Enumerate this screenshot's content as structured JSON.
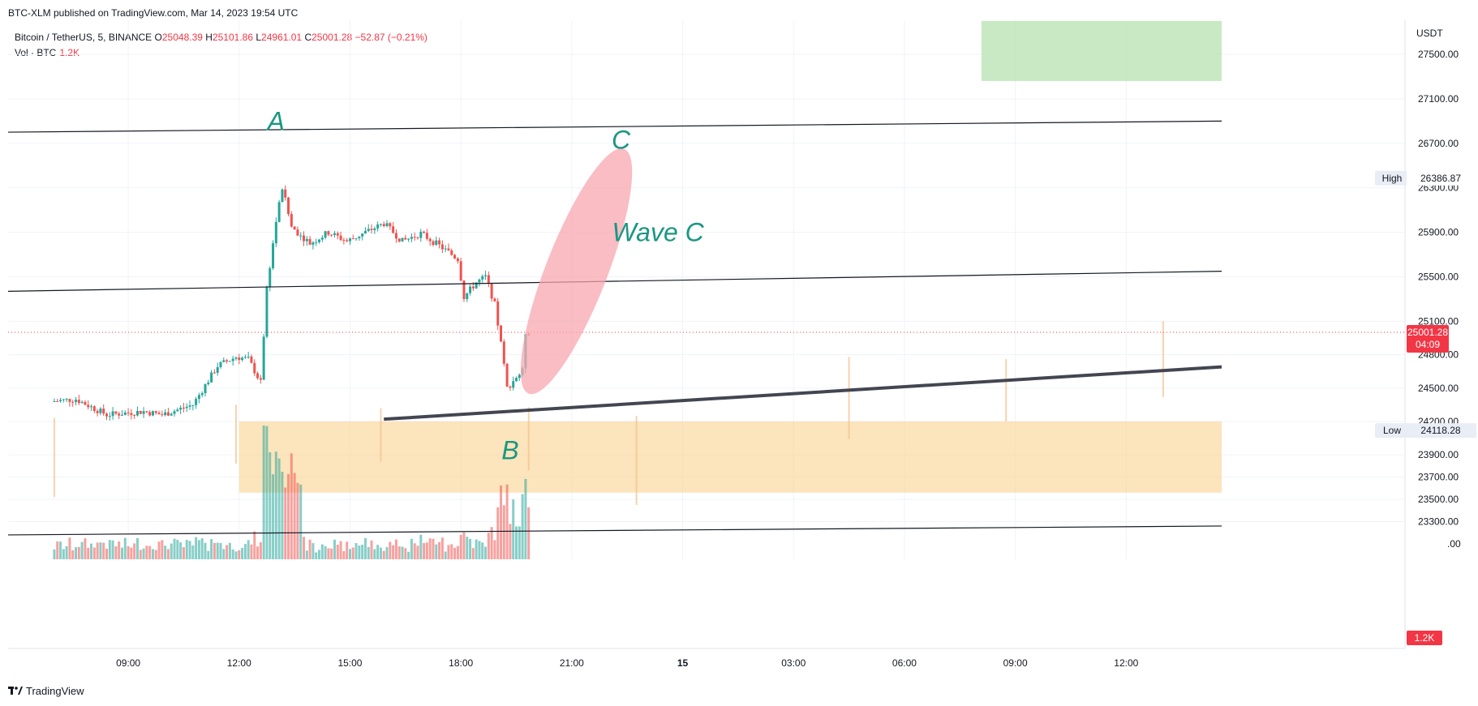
{
  "header": {
    "published": "BTC-XLM published on TradingView.com, Mar 14, 2023 19:54 UTC",
    "symbol": "Bitcoin / TetherUS, 5, BINANCE",
    "open_label": "O",
    "open": "25048.39",
    "high_label": "H",
    "high": "25101.86",
    "low_label": "L",
    "low": "24961.01",
    "close_label": "C",
    "close": "25001.28",
    "change": "−52.87 (−0.21%)",
    "vol_label": "Vol · BTC",
    "vol_value": "1.2K"
  },
  "footer": {
    "brand": "TradingView"
  },
  "colors": {
    "up": "#26a69a",
    "down": "#ef5350",
    "zone": "#fbd598",
    "target": "#b7e1b0",
    "ellipse": "#f7a7af",
    "annotation": "#1a9782",
    "price_tag": "#f23645"
  },
  "chart_data": {
    "type": "candlestick",
    "price_axis": {
      "unit": "USDT",
      "ticks": [
        "27500.00",
        "27100.00",
        "26700.00",
        "26300.00",
        "25900.00",
        "25500.00",
        "25100.00",
        "24800.00",
        "24500.00",
        "24200.00",
        "23900.00",
        "23700.00",
        "23500.00",
        "23300.00"
      ],
      "bottom_tick": ".00",
      "range": [
        23100,
        27900
      ]
    },
    "time_axis": {
      "ticks": [
        "09:00",
        "12:00",
        "15:00",
        "18:00",
        "21:00",
        "15",
        "03:00",
        "06:00",
        "09:00",
        "12:00"
      ],
      "bold_tick": "15"
    },
    "last_price": "25001.28",
    "countdown": "04:09",
    "volume_tag": "1.2K",
    "high_marker": {
      "label": "High",
      "value": "26386.87"
    },
    "low_marker": {
      "label": "Low",
      "value": "24118.28"
    },
    "waypoints": [
      {
        "t": "07:00",
        "p": 24380
      },
      {
        "t": "07:40",
        "p": 24400
      },
      {
        "t": "08:30",
        "p": 24260
      },
      {
        "t": "09:30",
        "p": 24290
      },
      {
        "t": "10:00",
        "p": 24260
      },
      {
        "t": "10:50",
        "p": 24350
      },
      {
        "t": "11:30",
        "p": 24700
      },
      {
        "t": "12:00",
        "p": 24780
      },
      {
        "t": "12:20",
        "p": 24760
      },
      {
        "t": "12:40",
        "p": 24550
      },
      {
        "t": "12:50",
        "p": 25400
      },
      {
        "t": "13:05",
        "p": 26000
      },
      {
        "t": "13:15",
        "p": 26300
      },
      {
        "t": "13:30",
        "p": 25950
      },
      {
        "t": "14:00",
        "p": 25800
      },
      {
        "t": "14:30",
        "p": 25900
      },
      {
        "t": "15:00",
        "p": 25820
      },
      {
        "t": "15:30",
        "p": 25900
      },
      {
        "t": "16:00",
        "p": 25980
      },
      {
        "t": "16:30",
        "p": 25820
      },
      {
        "t": "17:00",
        "p": 25890
      },
      {
        "t": "17:30",
        "p": 25780
      },
      {
        "t": "18:00",
        "p": 25660
      },
      {
        "t": "18:10",
        "p": 25320
      },
      {
        "t": "18:30",
        "p": 25450
      },
      {
        "t": "18:45",
        "p": 25500
      },
      {
        "t": "19:00",
        "p": 25250
      },
      {
        "t": "19:10",
        "p": 24900
      },
      {
        "t": "19:20",
        "p": 24500
      },
      {
        "t": "19:35",
        "p": 24600
      },
      {
        "t": "19:45",
        "p": 24650
      },
      {
        "t": "19:50",
        "p": 25000
      }
    ],
    "annotations": {
      "labels": [
        {
          "text": "A",
          "t": "13:00",
          "p": 26820
        },
        {
          "text": "B",
          "t": "19:20",
          "p": 23860
        },
        {
          "text": "C",
          "t": "22:20",
          "p": 26650
        },
        {
          "text": "Wave C",
          "t": "23:20",
          "p": 25820
        }
      ],
      "lines": [
        {
          "style": "thin",
          "from": {
            "t": "05:45",
            "p": 26800
          },
          "to": {
            "t": "Mar 15 14:35",
            "p": 26900
          }
        },
        {
          "style": "thin",
          "from": {
            "t": "05:45",
            "p": 25370
          },
          "to": {
            "t": "Mar 15 14:35",
            "p": 25550
          }
        },
        {
          "style": "thin",
          "from": {
            "t": "05:45",
            "p": 23180
          },
          "to": {
            "t": "Mar 15 14:35",
            "p": 23260
          }
        },
        {
          "style": "thick",
          "from": {
            "t": "15:55",
            "p": 24220
          },
          "to": {
            "t": "Mar 15 14:35",
            "p": 24690
          }
        }
      ],
      "zones": [
        {
          "name": "demand-zone",
          "from_t": "12:00",
          "to_t": "Mar 15 14:35",
          "p_low": 23560,
          "p_high": 24200
        },
        {
          "name": "target-zone",
          "from_t": "Mar 15 08:05",
          "to_t": "Mar 15 14:35",
          "p_low": 27260,
          "p_high": 27800
        }
      ],
      "ellipse": {
        "center": {
          "t": "21:05",
          "p": 25560
        },
        "from": {
          "t": "19:50",
          "p": 24450
        },
        "to": {
          "t": "22:25",
          "p": 26650
        }
      }
    }
  }
}
